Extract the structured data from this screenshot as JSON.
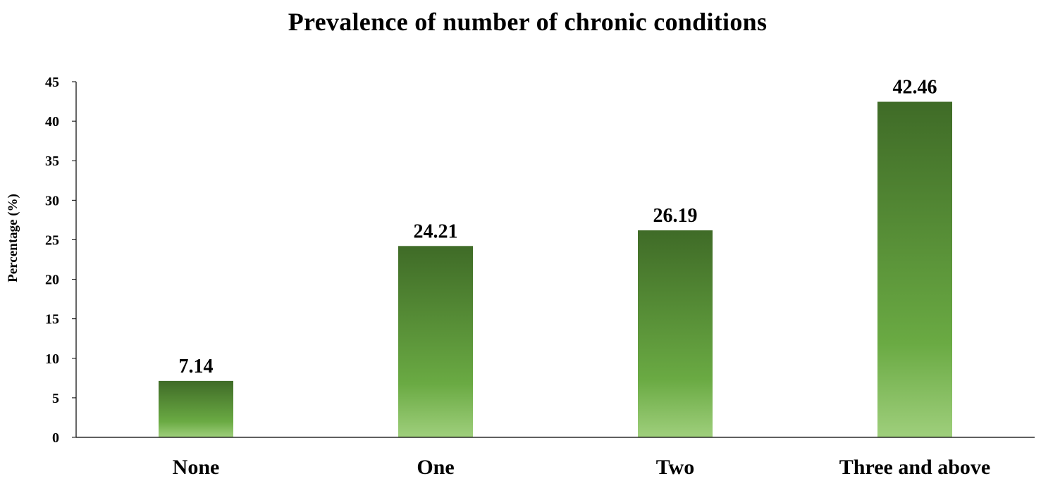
{
  "chart_data": {
    "type": "bar",
    "title": "Prevalence of number of chronic conditions",
    "xlabel": "",
    "ylabel": "Percentage (%)",
    "categories": [
      "None",
      "One",
      "Two",
      "Three and above"
    ],
    "values": [
      7.14,
      24.21,
      26.19,
      42.46
    ],
    "data_labels": [
      "7.14",
      "24.21",
      "26.19",
      "42.46"
    ],
    "ylim": [
      0,
      45
    ],
    "yticks": [
      0,
      5,
      10,
      15,
      20,
      25,
      30,
      35,
      40,
      45
    ],
    "grid": false,
    "legend": "none",
    "colors": {
      "bar_top": "#3f6b27",
      "bar_mid": "#6aaa43",
      "bar_bottom": "#9fcf7c",
      "axis": "#000000"
    }
  }
}
